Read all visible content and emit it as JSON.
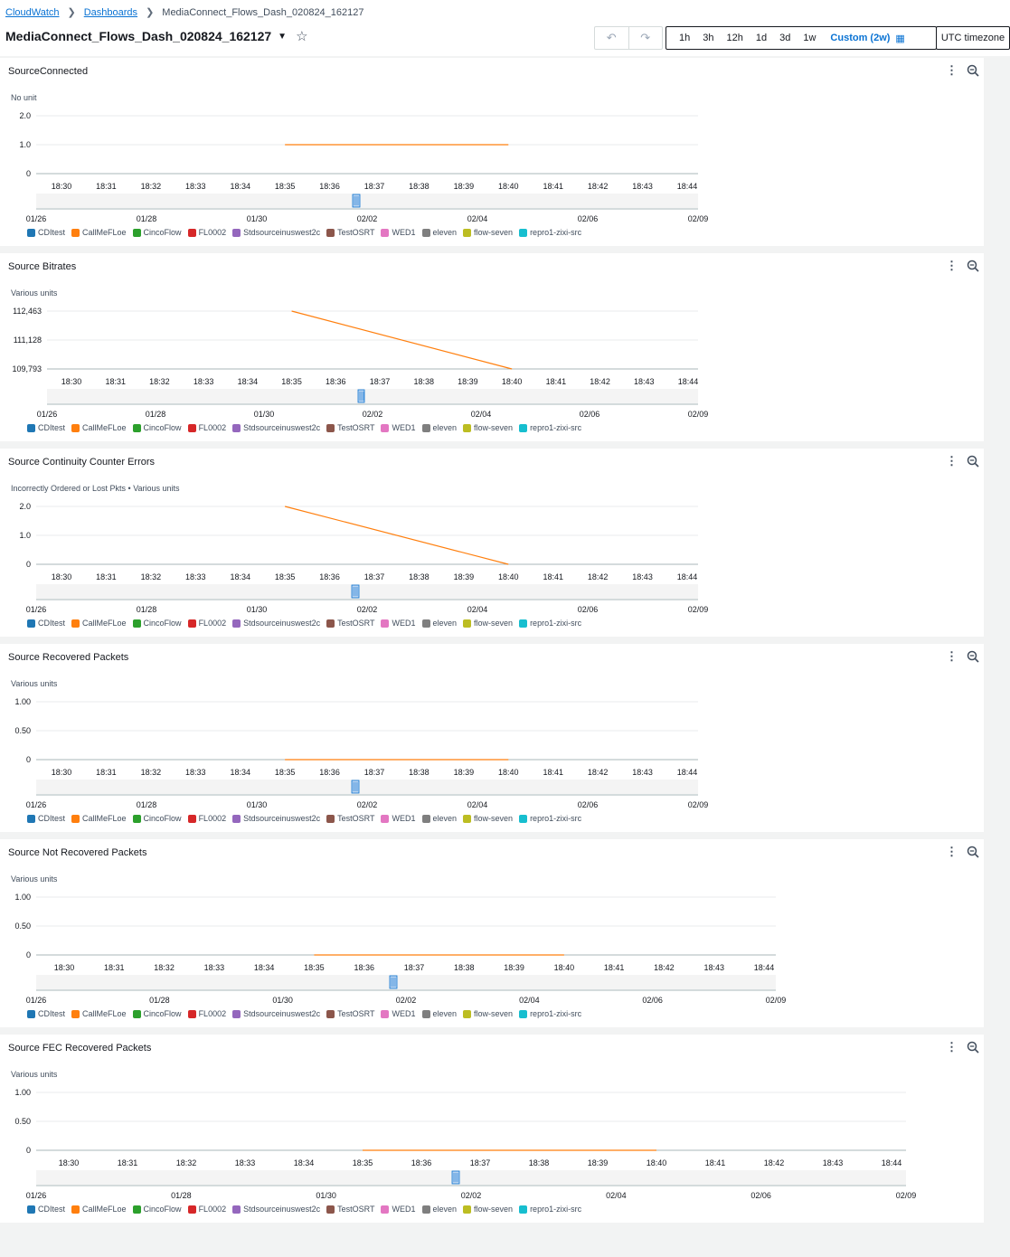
{
  "breadcrumb": {
    "root": "CloudWatch",
    "parent": "Dashboards",
    "current": "MediaConnect_Flows_Dash_020824_162127"
  },
  "page_title": "MediaConnect_Flows_Dash_020824_162127",
  "toolbar": {
    "undo_icon": "undo-icon",
    "redo_icon": "redo-icon",
    "ranges": [
      "1h",
      "3h",
      "12h",
      "1d",
      "3d",
      "1w"
    ],
    "custom": "Custom (2w)",
    "timezone": "UTC timezone"
  },
  "legend": [
    {
      "name": "CDItest",
      "color": "#1f77b4"
    },
    {
      "name": "CallMeFLoe",
      "color": "#ff7f0e"
    },
    {
      "name": "CincoFlow",
      "color": "#2ca02c"
    },
    {
      "name": "FL0002",
      "color": "#d62728"
    },
    {
      "name": "Stdsourceinuswest2c",
      "color": "#9467bd"
    },
    {
      "name": "TestOSRT",
      "color": "#8c564b"
    },
    {
      "name": "WED1",
      "color": "#e377c2"
    },
    {
      "name": "eleven",
      "color": "#7f7f7f"
    },
    {
      "name": "flow-seven",
      "color": "#bcbd22"
    },
    {
      "name": "repro1-zixi-src",
      "color": "#17becf"
    }
  ],
  "chart_data": [
    {
      "type": "line",
      "title": "SourceConnected",
      "unit_label": "No unit",
      "x_ticks": [
        "18:30",
        "18:31",
        "18:32",
        "18:33",
        "18:34",
        "18:35",
        "18:36",
        "18:37",
        "18:38",
        "18:39",
        "18:40",
        "18:41",
        "18:42",
        "18:43",
        "18:44"
      ],
      "y_ticks": [
        "2.0",
        "1.0",
        "0"
      ],
      "ylim": [
        0,
        2
      ],
      "nav_ticks": [
        "01/26",
        "01/28",
        "01/30",
        "02/02",
        "02/04",
        "02/06",
        "02/09"
      ],
      "series": [
        {
          "legend_index": 1,
          "x": [
            "18:35",
            "18:40"
          ],
          "y": [
            1,
            1
          ]
        }
      ]
    },
    {
      "type": "line",
      "title": "Source Bitrates",
      "unit_label": "Various units",
      "x_ticks": [
        "18:30",
        "18:31",
        "18:32",
        "18:33",
        "18:34",
        "18:35",
        "18:36",
        "18:37",
        "18:38",
        "18:39",
        "18:40",
        "18:41",
        "18:42",
        "18:43",
        "18:44"
      ],
      "y_ticks": [
        "112,463",
        "111,128",
        "109,793"
      ],
      "ylim": [
        109793,
        112463
      ],
      "nav_ticks": [
        "01/26",
        "01/28",
        "01/30",
        "02/02",
        "02/04",
        "02/06",
        "02/09"
      ],
      "series": [
        {
          "legend_index": 1,
          "x": [
            "18:35",
            "18:40"
          ],
          "y": [
            112463,
            109793
          ]
        }
      ]
    },
    {
      "type": "line",
      "title": "Source Continuity Counter Errors",
      "unit_label": "Incorrectly Ordered or Lost Pkts • Various units",
      "x_ticks": [
        "18:30",
        "18:31",
        "18:32",
        "18:33",
        "18:34",
        "18:35",
        "18:36",
        "18:37",
        "18:38",
        "18:39",
        "18:40",
        "18:41",
        "18:42",
        "18:43",
        "18:44"
      ],
      "y_ticks": [
        "2.0",
        "1.0",
        "0"
      ],
      "ylim": [
        0,
        2
      ],
      "nav_ticks": [
        "01/26",
        "01/28",
        "01/30",
        "02/02",
        "02/04",
        "02/06",
        "02/09"
      ],
      "series": [
        {
          "legend_index": 1,
          "x": [
            "18:35",
            "18:40"
          ],
          "y": [
            2,
            0
          ]
        }
      ]
    },
    {
      "type": "line",
      "title": "Source Recovered Packets",
      "unit_label": "Various units",
      "x_ticks": [
        "18:30",
        "18:31",
        "18:32",
        "18:33",
        "18:34",
        "18:35",
        "18:36",
        "18:37",
        "18:38",
        "18:39",
        "18:40",
        "18:41",
        "18:42",
        "18:43",
        "18:44"
      ],
      "y_ticks": [
        "1.00",
        "0.50",
        "0"
      ],
      "ylim": [
        0,
        1
      ],
      "nav_ticks": [
        "01/26",
        "01/28",
        "01/30",
        "02/02",
        "02/04",
        "02/06",
        "02/09"
      ],
      "series": [
        {
          "legend_index": 1,
          "x": [
            "18:35",
            "18:40"
          ],
          "y": [
            0,
            0
          ]
        }
      ]
    },
    {
      "type": "line",
      "title": "Source Not Recovered Packets",
      "unit_label": "Various units",
      "x_ticks": [
        "18:30",
        "18:31",
        "18:32",
        "18:33",
        "18:34",
        "18:35",
        "18:36",
        "18:37",
        "18:38",
        "18:39",
        "18:40",
        "18:41",
        "18:42",
        "18:43",
        "18:44"
      ],
      "y_ticks": [
        "1.00",
        "0.50",
        "0"
      ],
      "ylim": [
        0,
        1
      ],
      "nav_ticks": [
        "01/26",
        "01/28",
        "01/30",
        "02/02",
        "02/04",
        "02/06",
        "02/09"
      ],
      "series": [
        {
          "legend_index": 1,
          "x": [
            "18:35",
            "18:40"
          ],
          "y": [
            0,
            0
          ]
        }
      ]
    },
    {
      "type": "line",
      "title": "Source FEC Recovered Packets",
      "unit_label": "Various units",
      "x_ticks": [
        "18:30",
        "18:31",
        "18:32",
        "18:33",
        "18:34",
        "18:35",
        "18:36",
        "18:37",
        "18:38",
        "18:39",
        "18:40",
        "18:41",
        "18:42",
        "18:43",
        "18:44"
      ],
      "y_ticks": [
        "1.00",
        "0.50",
        "0"
      ],
      "ylim": [
        0,
        1
      ],
      "nav_ticks": [
        "01/26",
        "01/28",
        "01/30",
        "02/02",
        "02/04",
        "02/06",
        "02/09"
      ],
      "series": [
        {
          "legend_index": 1,
          "x": [
            "18:35",
            "18:40"
          ],
          "y": [
            0,
            0
          ]
        }
      ]
    }
  ]
}
